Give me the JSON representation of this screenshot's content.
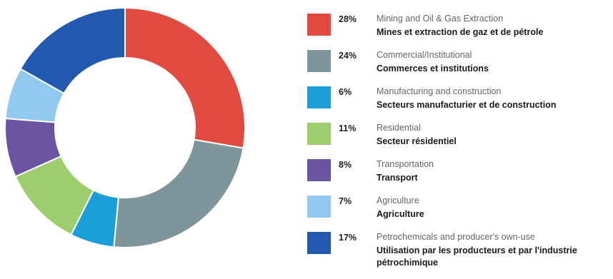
{
  "chart_data": {
    "type": "pie",
    "donut": true,
    "title": "",
    "legend_position": "right",
    "slices": [
      {
        "percent_label": "28%",
        "value": 28,
        "label_en": "Mining and Oil & Gas Extraction",
        "label_fr": "Mines et extraction de gaz et de pétrole",
        "color": "#e24a3f"
      },
      {
        "percent_label": "24%",
        "value": 24,
        "label_en": "Commercial/Institutional",
        "label_fr": "Commerces et institutions",
        "color": "#7f959c"
      },
      {
        "percent_label": "6%",
        "value": 6,
        "label_en": "Manufacturing and construction",
        "label_fr": "Secteurs manufacturier et de construction",
        "color": "#1a9fd9"
      },
      {
        "percent_label": "11%",
        "value": 11,
        "label_en": "Residential",
        "label_fr": "Secteur résidentiel",
        "color": "#9dcd6d"
      },
      {
        "percent_label": "8%",
        "value": 8,
        "label_en": "Transportation",
        "label_fr": "Transport",
        "color": "#6b55a3"
      },
      {
        "percent_label": "7%",
        "value": 7,
        "label_en": "Agriculture",
        "label_fr": "Agriculture",
        "color": "#92c9ef"
      },
      {
        "percent_label": "17%",
        "value": 17,
        "label_en": "Petrochemicals and producer's own-use",
        "label_fr": "Utilisation par les producteurs et par l'industrie pétrochimique",
        "color": "#2059ad"
      }
    ]
  }
}
